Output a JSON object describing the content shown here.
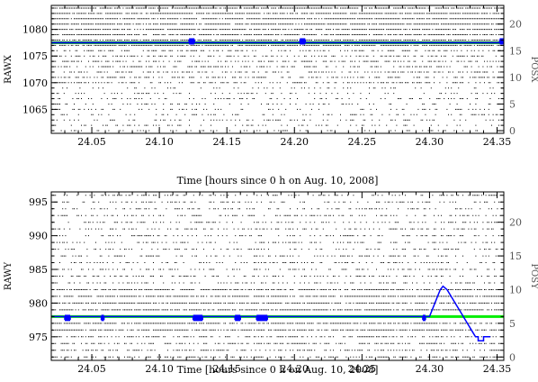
{
  "chart_data": [
    {
      "type": "scatter",
      "xlabel": "Time [hours since 0 h on Aug. 10, 2008]",
      "ylabel": "RAWX",
      "y2label": "POSX",
      "xlim": [
        24.02,
        24.355
      ],
      "ylim": [
        1060.5,
        1084.5
      ],
      "y2lim": [
        -0.5,
        23.5
      ],
      "xticks": [
        24.05,
        24.1,
        24.15,
        24.2,
        24.25,
        24.3,
        24.35
      ],
      "yticks": [
        1065,
        1070,
        1075,
        1080
      ],
      "y2ticks": [
        0,
        5,
        10,
        15,
        20
      ],
      "grid": false,
      "series": [
        {
          "color": "#000000",
          "points": "event rows at every RAWX from 1061 to 1084 across the full time range; rows above 1077 nearly continuous, rows below sparser"
        },
        {
          "color": "#00aa00",
          "x": [
            24.02,
            24.355
          ],
          "y": [
            1077.5,
            1077.5
          ]
        },
        {
          "color": "#0000ff",
          "x": [
            24.02,
            24.122,
            24.122,
            24.126,
            24.126,
            24.204,
            24.204,
            24.208,
            24.208,
            24.352,
            24.352,
            24.355
          ],
          "y": [
            1077.5,
            1077.5,
            1078,
            1078,
            1077.5,
            1077.5,
            1078,
            1078,
            1077.5,
            1077.5,
            1078,
            1078
          ]
        }
      ]
    },
    {
      "type": "scatter",
      "xlabel": "Time [hours since 0 h on Aug. 10, 2008]",
      "ylabel": "RAWY",
      "y2label": "POSY",
      "xlim": [
        24.02,
        24.355
      ],
      "ylim": [
        971.5,
        996.5
      ],
      "y2lim": [
        -0.5,
        24.5
      ],
      "xticks": [
        24.05,
        24.1,
        24.15,
        24.2,
        24.25,
        24.3,
        24.35
      ],
      "yticks": [
        975,
        980,
        985,
        990,
        995
      ],
      "y2ticks": [
        0,
        5,
        10,
        15,
        20
      ],
      "grid": false,
      "series": [
        {
          "color": "#000000",
          "points": "event rows at every RAWY from 972 to 996 across the full time range; rows near 978 dense, upper rows sparse"
        },
        {
          "color": "#00ee00",
          "x": [
            24.02,
            24.355
          ],
          "y": [
            978.0,
            978.0
          ]
        },
        {
          "color": "#0000ff",
          "x": [
            24.02,
            24.03,
            24.03,
            24.034,
            24.034,
            24.057,
            24.057,
            24.059,
            24.059,
            24.125,
            24.125,
            24.132,
            24.132,
            24.156,
            24.156,
            24.16,
            24.16,
            24.172,
            24.172,
            24.18,
            24.18,
            24.295,
            24.295,
            24.297,
            24.297,
            24.3,
            24.302,
            24.304,
            24.306,
            24.308,
            24.31,
            24.313,
            24.316,
            24.319,
            24.322,
            24.325,
            24.328,
            24.331,
            24.334,
            24.336,
            24.336,
            24.34,
            24.34,
            24.345
          ],
          "y": [
            978.0,
            978.0,
            977.6,
            977.6,
            978.0,
            978.0,
            977.6,
            977.6,
            978.0,
            978.0,
            977.6,
            977.6,
            978.0,
            978.0,
            977.6,
            977.6,
            978.0,
            978.0,
            977.6,
            977.6,
            978.0,
            978.0,
            977.6,
            977.6,
            978.0,
            978.0,
            979,
            980,
            981,
            982,
            982.5,
            982,
            981,
            980,
            979,
            978,
            977,
            976,
            975,
            975,
            974.4,
            974.4,
            975,
            975
          ]
        }
      ]
    }
  ]
}
